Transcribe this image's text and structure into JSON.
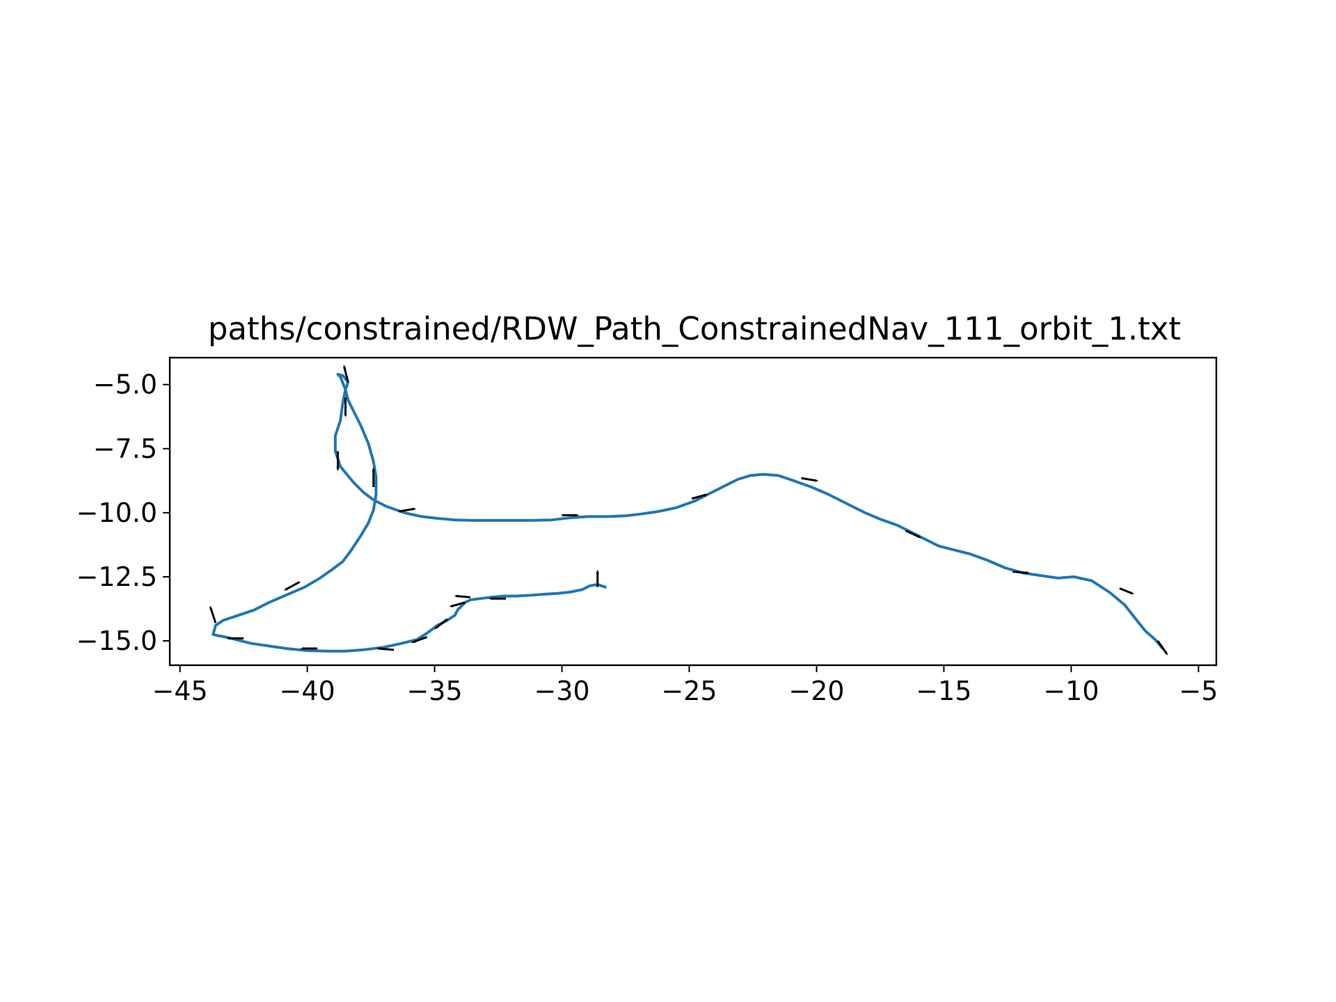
{
  "chart_data": {
    "type": "line",
    "title": "paths/constrained/RDW_Path_ConstrainedNav_111_orbit_1.txt",
    "xlabel": "",
    "ylabel": "",
    "xlim": [
      -45.4,
      -4.3
    ],
    "ylim": [
      -15.95,
      -3.95
    ],
    "xticks": [
      -45,
      -40,
      -35,
      -30,
      -25,
      -20,
      -15,
      -10,
      -5
    ],
    "xtick_labels": [
      "−45",
      "−40",
      "−35",
      "−30",
      "−25",
      "−20",
      "−15",
      "−10",
      "−5"
    ],
    "yticks": [
      -5.0,
      -7.5,
      -10.0,
      -12.5,
      -15.0
    ],
    "ytick_labels": [
      "−5.0",
      "−7.5",
      "−10.0",
      "−12.5",
      "−15.0"
    ],
    "grid": false,
    "line_color": "#1f77b4",
    "arrow_color": "#000000",
    "series": [
      {
        "x": [
          -6.4,
          -6.7,
          -7.1,
          -7.5,
          -7.9,
          -8.5,
          -9.2,
          -9.9,
          -10.5,
          -11.2,
          -11.9,
          -12.6,
          -13.3,
          -14.0,
          -14.6,
          -15.2,
          -15.6,
          -16.2,
          -16.8,
          -17.5,
          -18.1,
          -18.8,
          -19.5,
          -20.2,
          -20.9,
          -21.5,
          -22.1,
          -22.6,
          -23.1,
          -23.6,
          -24.2,
          -24.8,
          -25.5,
          -26.2,
          -26.9,
          -27.5,
          -28.2,
          -29.0,
          -29.7,
          -30.4,
          -31.2,
          -32.0,
          -32.8,
          -33.5,
          -34.2,
          -34.9,
          -35.5,
          -36.2,
          -36.9,
          -37.4,
          -37.8,
          -38.2,
          -38.7,
          -38.9,
          -38.9,
          -38.7,
          -38.6,
          -38.5,
          -38.4,
          -38.6,
          -38.8,
          -38.7,
          -38.5,
          -38.4,
          -38.2,
          -37.9,
          -37.6,
          -37.4,
          -37.3,
          -37.3,
          -37.4,
          -37.6,
          -37.9,
          -38.3,
          -38.6,
          -39.0,
          -39.5,
          -40.1,
          -40.8,
          -41.5,
          -42.1,
          -42.7,
          -43.3,
          -43.6,
          -43.7,
          -43.5,
          -43.2,
          -42.8,
          -42.2,
          -41.5,
          -40.8,
          -40.0,
          -39.2,
          -38.5,
          -37.8,
          -37.0,
          -36.3,
          -35.7,
          -35.3,
          -34.9,
          -34.5,
          -34.2,
          -34.1,
          -33.9,
          -33.8,
          -33.6,
          -33.2,
          -32.8,
          -32.3,
          -31.8,
          -31.2,
          -30.7,
          -30.2,
          -29.7,
          -29.2,
          -28.9,
          -28.6,
          -28.3
        ],
        "y": [
          -15.3,
          -14.95,
          -14.6,
          -14.1,
          -13.6,
          -13.1,
          -12.65,
          -12.5,
          -12.55,
          -12.45,
          -12.35,
          -12.15,
          -11.85,
          -11.6,
          -11.45,
          -11.3,
          -11.1,
          -10.8,
          -10.5,
          -10.25,
          -10.0,
          -9.65,
          -9.3,
          -9.0,
          -8.75,
          -8.55,
          -8.5,
          -8.55,
          -8.7,
          -8.95,
          -9.25,
          -9.55,
          -9.8,
          -9.95,
          -10.05,
          -10.12,
          -10.15,
          -10.15,
          -10.2,
          -10.28,
          -10.3,
          -10.3,
          -10.3,
          -10.3,
          -10.28,
          -10.22,
          -10.15,
          -10.0,
          -9.75,
          -9.5,
          -9.2,
          -8.8,
          -8.2,
          -7.6,
          -7.0,
          -6.4,
          -5.7,
          -5.2,
          -4.9,
          -4.65,
          -4.6,
          -4.7,
          -5.2,
          -5.6,
          -6.0,
          -6.6,
          -7.3,
          -8.0,
          -8.6,
          -9.3,
          -9.9,
          -10.4,
          -10.9,
          -11.5,
          -11.9,
          -12.2,
          -12.55,
          -12.9,
          -13.2,
          -13.5,
          -13.8,
          -14.0,
          -14.2,
          -14.4,
          -14.75,
          -14.8,
          -14.85,
          -14.95,
          -15.1,
          -15.2,
          -15.3,
          -15.38,
          -15.4,
          -15.4,
          -15.35,
          -15.25,
          -15.1,
          -14.95,
          -14.7,
          -14.4,
          -14.2,
          -14.0,
          -13.8,
          -13.6,
          -13.5,
          -13.4,
          -13.35,
          -13.3,
          -13.25,
          -13.25,
          -13.22,
          -13.18,
          -13.15,
          -13.1,
          -13.0,
          -12.85,
          -12.8,
          -12.9
        ]
      }
    ],
    "arrows": [
      {
        "x": -6.6,
        "y": -15.0,
        "dx": 0.35,
        "dy": -0.5
      },
      {
        "x": -8.1,
        "y": -12.95,
        "dx": 0.5,
        "dy": -0.2
      },
      {
        "x": -12.3,
        "y": -12.3,
        "dx": 0.6,
        "dy": -0.05
      },
      {
        "x": -16.5,
        "y": -10.7,
        "dx": 0.55,
        "dy": -0.25
      },
      {
        "x": -20.6,
        "y": -8.65,
        "dx": 0.6,
        "dy": -0.1
      },
      {
        "x": -24.9,
        "y": -9.45,
        "dx": 0.55,
        "dy": 0.15
      },
      {
        "x": -30.0,
        "y": -10.1,
        "dx": 0.6,
        "dy": 0.0
      },
      {
        "x": -36.4,
        "y": -9.95,
        "dx": 0.6,
        "dy": 0.1
      },
      {
        "x": -37.4,
        "y": -9.0,
        "dx": 0.0,
        "dy": 0.7
      },
      {
        "x": -38.8,
        "y": -7.6,
        "dx": 0.0,
        "dy": -0.7
      },
      {
        "x": -38.5,
        "y": -5.5,
        "dx": 0.0,
        "dy": -0.7
      },
      {
        "x": -38.4,
        "y": -4.9,
        "dx": -0.15,
        "dy": 0.6
      },
      {
        "x": -40.3,
        "y": -12.7,
        "dx": -0.55,
        "dy": -0.3
      },
      {
        "x": -43.6,
        "y": -14.3,
        "dx": -0.2,
        "dy": 0.6
      },
      {
        "x": -42.5,
        "y": -14.9,
        "dx": -0.6,
        "dy": 0.0
      },
      {
        "x": -39.6,
        "y": -15.3,
        "dx": -0.6,
        "dy": 0.0
      },
      {
        "x": -36.6,
        "y": -15.35,
        "dx": -0.6,
        "dy": 0.05
      },
      {
        "x": -35.3,
        "y": -14.85,
        "dx": -0.55,
        "dy": -0.2
      },
      {
        "x": -34.5,
        "y": -14.15,
        "dx": -0.45,
        "dy": -0.35
      },
      {
        "x": -33.8,
        "y": -13.5,
        "dx": -0.55,
        "dy": -0.15
      },
      {
        "x": -33.6,
        "y": -13.3,
        "dx": -0.55,
        "dy": 0.05
      },
      {
        "x": -32.2,
        "y": -13.35,
        "dx": -0.6,
        "dy": 0.0
      },
      {
        "x": -28.6,
        "y": -12.9,
        "dx": 0.0,
        "dy": 0.6
      }
    ]
  }
}
